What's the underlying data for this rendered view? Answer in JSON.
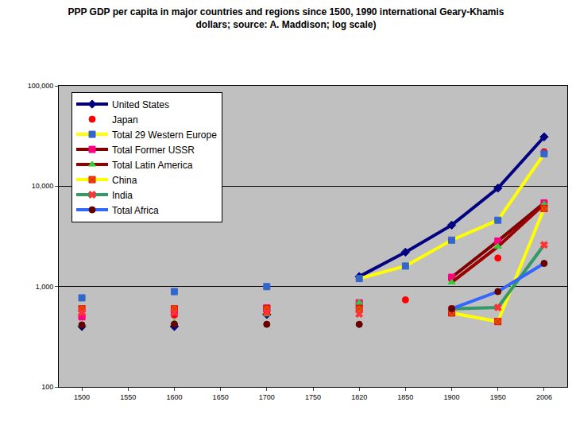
{
  "chart_data": {
    "type": "line",
    "title": "PPP GDP per capita in major countries and regions since 1500, 1990 international Geary-Khamis dollars; source: A. Maddison; log scale)",
    "categories": [
      "1500",
      "1550",
      "1600",
      "1650",
      "1700",
      "1750",
      "1820",
      "1850",
      "1900",
      "1950",
      "2006"
    ],
    "series": [
      {
        "name": "United States",
        "color": "#000080",
        "marker": "diamond",
        "line_style": "solid",
        "values": [
          400,
          null,
          400,
          null,
          527,
          null,
          1257,
          2200,
          4091,
          9561,
          31000
        ]
      },
      {
        "name": "Japan",
        "color": "#ff0000",
        "marker": "circle",
        "line_style": "none",
        "values": [
          500,
          null,
          520,
          null,
          570,
          null,
          669,
          737,
          1180,
          1921,
          22000
        ]
      },
      {
        "name": "Total 29 Western Europe",
        "color": "#ffff00",
        "marker": "square",
        "line_style": "solid",
        "values": [
          771,
          null,
          890,
          null,
          998,
          null,
          1202,
          1600,
          2900,
          4579,
          21000
        ]
      },
      {
        "name": "Total Former USSR",
        "color": "#800000",
        "marker": "square",
        "line_style": "solid",
        "values": [
          499,
          null,
          552,
          null,
          611,
          null,
          688,
          null,
          1237,
          2841,
          6800
        ]
      },
      {
        "name": "Total Latin America",
        "color": "#990000",
        "marker": "triangle-up",
        "line_style": "solid",
        "values": [
          416,
          null,
          438,
          null,
          527,
          null,
          692,
          null,
          1100,
          2500,
          6600
        ]
      },
      {
        "name": "China",
        "color": "#ffff00",
        "marker": "square-x",
        "line_style": "solid",
        "values": [
          600,
          null,
          600,
          null,
          600,
          null,
          600,
          null,
          545,
          448,
          6000
        ]
      },
      {
        "name": "India",
        "color": "#339966",
        "marker": "x",
        "line_style": "solid",
        "values": [
          550,
          null,
          550,
          null,
          550,
          null,
          533,
          null,
          599,
          619,
          2600
        ]
      },
      {
        "name": "Total Africa",
        "color": "#3366ff",
        "marker": "circle",
        "line_style": "solid",
        "values": [
          414,
          null,
          422,
          null,
          421,
          null,
          420,
          null,
          601,
          890,
          1700
        ]
      }
    ],
    "ylim": [
      100,
      100000
    ],
    "yticks": [
      100,
      {
        "value": 1000,
        "label": "1,000"
      },
      {
        "value": 10000,
        "label": "10,000"
      },
      {
        "value": 100000,
        "label": "100,000"
      }
    ],
    "log": "y",
    "grid": true,
    "legend": "upper left"
  }
}
